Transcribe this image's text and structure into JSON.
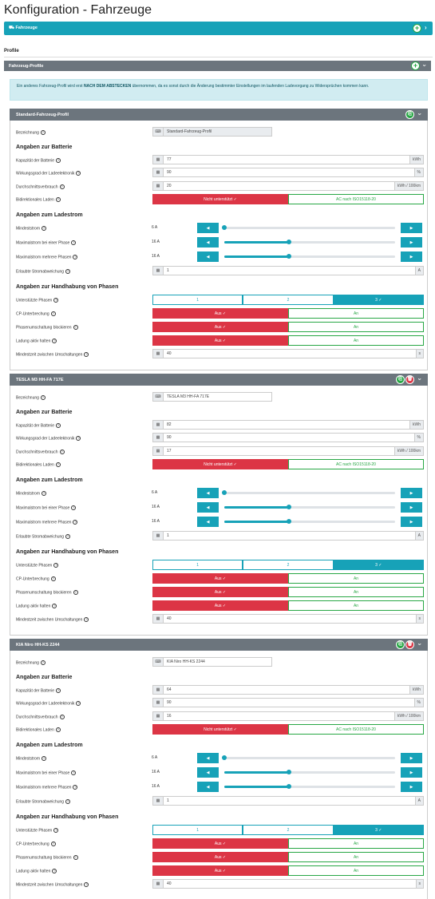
{
  "page": {
    "title": "Konfiguration - Fahrzeuge"
  },
  "vehicles_bar": {
    "label": "⛟ Fahrzeuge"
  },
  "profiles_heading": "Profile",
  "profiles_bar": {
    "label": "Fahrzeug-Profile"
  },
  "info_text_pre": "Ein anderes Fahrzeug-Profil wird erst ",
  "info_text_bold": "NACH DEM ABSTECKEN",
  "info_text_post": " übernommen, da es sonst durch die Änderung bestimmter Einstellungen im laufenden Ladevorgang zu Widersprüchen kommen kann.",
  "labels": {
    "bezeichnung": "Bezeichnung",
    "sec_batterie": "Angaben zur Batterie",
    "kapazitaet": "Kapazität der Batterie",
    "wirkungsgrad": "Wirkungsgrad der Ladeelektronik",
    "verbrauch": "Durchschnittsverbrauch",
    "bidirektional": "Bidirektionales Laden",
    "sec_ladestrom": "Angaben zum Ladestrom",
    "mindeststrom": "Mindeststrom",
    "max_eine": "Maximalstrom bei einer Phase",
    "max_mehrere": "Maximalstrom mehrere Phasen",
    "abweichung": "Erlaubte Stromabweichung",
    "sec_phasen": "Angaben zur Handhabung von Phasen",
    "phasen": "Unterstützte Phasen",
    "cp": "CP-Unterbrechung",
    "umschaltung": "Phasenumschaltung blockieren",
    "ladung_aktiv": "Ladung aktiv halten",
    "mindestzeit": "Mindestzeit zwischen Umschaltungen"
  },
  "units": {
    "kwh": "kWh",
    "percent": "%",
    "consumption": "kWh / 100km",
    "amp": "A",
    "sec": "s"
  },
  "options": {
    "not_supported": "Nicht unterstützt ✓",
    "iso": "AC nach ISO15118-20",
    "aus": "Aus ✓",
    "an": "An",
    "phase1": "1",
    "phase2": "2",
    "phase3": "3 ✓"
  },
  "profiles": [
    {
      "name": "Standard-Fahrzeug-Profil",
      "bezeichnung": "Standard-Fahrzeug-Profil",
      "kapazitaet": "77",
      "wirkungsgrad": "90",
      "verbrauch": "20",
      "min_a": "6 A",
      "max_one_a": "16 A",
      "max_multi_a": "16 A",
      "min_frac": 0.0,
      "max_one_frac": 0.38,
      "max_multi_frac": 0.38,
      "abweichung": "1",
      "mindestzeit": "40",
      "deletable": false
    },
    {
      "name": "TESLA M3 HH-FA 717E",
      "bezeichnung": "TESLA M3 HH-FA 717E",
      "kapazitaet": "82",
      "wirkungsgrad": "90",
      "verbrauch": "17",
      "min_a": "6 A",
      "max_one_a": "16 A",
      "max_multi_a": "16 A",
      "min_frac": 0.0,
      "max_one_frac": 0.38,
      "max_multi_frac": 0.38,
      "abweichung": "1",
      "mindestzeit": "40",
      "deletable": true
    },
    {
      "name": "KIA Niro HH-KS 2244",
      "bezeichnung": "KIA Niro HH-KS 2244",
      "kapazitaet": "64",
      "wirkungsgrad": "90",
      "verbrauch": "16",
      "min_a": "6 A",
      "max_one_a": "16 A",
      "max_multi_a": "16 A",
      "min_frac": 0.0,
      "max_one_frac": 0.38,
      "max_multi_frac": 0.38,
      "abweichung": "1",
      "mindestzeit": "40",
      "deletable": true
    }
  ],
  "colors": {
    "teal": "#17a2b8",
    "red": "#dc3545",
    "green": "#28a745",
    "gray_header": "#6c757d"
  }
}
